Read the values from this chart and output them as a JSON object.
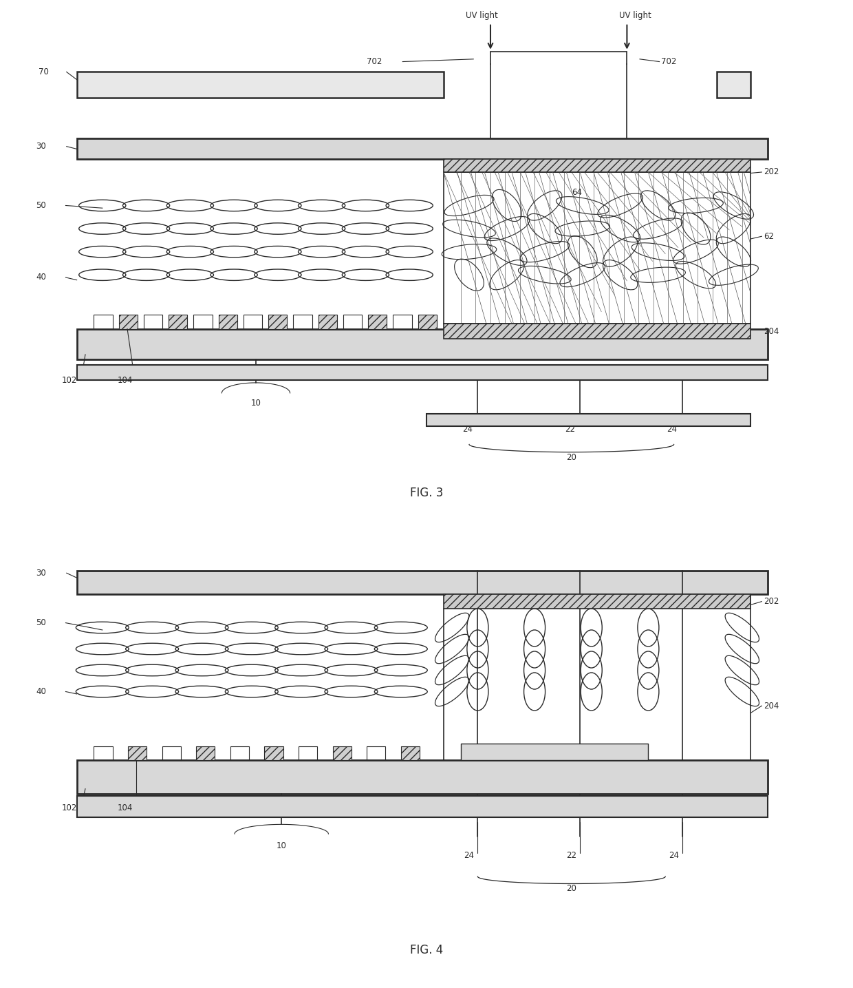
{
  "fig_width": 12.4,
  "fig_height": 14.35,
  "bg_color": "#ffffff",
  "lc": "#2a2a2a",
  "fig3_label": "FIG. 3",
  "fig4_label": "FIG. 4"
}
